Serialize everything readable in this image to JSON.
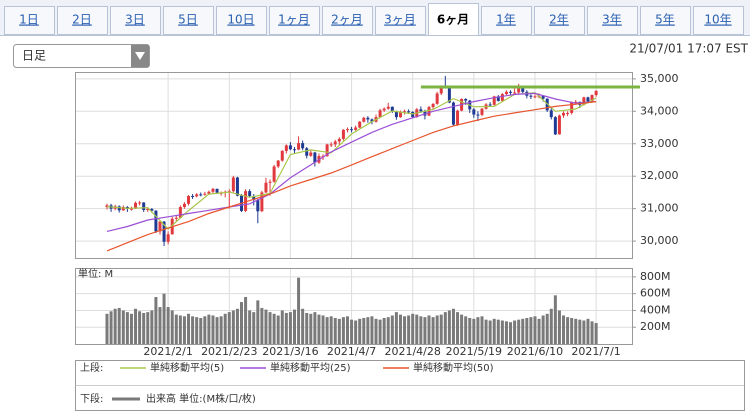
{
  "tabs": [
    "1日",
    "2日",
    "3日",
    "5日",
    "10日",
    "1ヶ月",
    "2ヶ月",
    "3ヶ月",
    "6ヶ月",
    "1年",
    "2年",
    "3年",
    "5年",
    "10年"
  ],
  "selected_tab": 8,
  "dropdown": "日足",
  "timestamp": "21/07/01 17:07 EST",
  "chart_data": [
    {
      "type": "candlestick",
      "legend_label": "上段:",
      "up_color": "#e0393e",
      "down_color": "#1f3a93",
      "ylim": [
        29480,
        35180
      ],
      "yticks": [
        {
          "value": 30000,
          "label": "30,000"
        },
        {
          "value": 31000,
          "label": "31,000"
        },
        {
          "value": 32000,
          "label": "32,000"
        },
        {
          "value": 33000,
          "label": "33,000"
        },
        {
          "value": 34000,
          "label": "34,000"
        },
        {
          "value": 35000,
          "label": "35,000"
        }
      ],
      "grid": true,
      "open": [
        31050,
        31100,
        31000,
        31070,
        30950,
        31050,
        30990,
        31000,
        31180,
        31190,
        30960,
        30990,
        30940,
        30300,
        30600,
        29980,
        30210,
        30690,
        30720,
        31050,
        31150,
        31390,
        31380,
        31440,
        31430,
        31460,
        31520,
        31610,
        31490,
        31490,
        31520,
        31540,
        31960,
        31400,
        30930,
        31540,
        31390,
        31270,
        30920,
        31500,
        31800,
        31830,
        32300,
        32480,
        32780,
        32950,
        32830,
        32820,
        33020,
        32860,
        32630,
        32730,
        32420,
        32620,
        32620,
        32980,
        32980,
        33070,
        33150,
        33430,
        33450,
        33430,
        33500,
        33680,
        33800,
        33750,
        33680,
        33820,
        34030,
        34080,
        34140,
        34000,
        33820,
        33980,
        34000,
        33980,
        33820,
        34060,
        34000,
        33870,
        34130,
        34230,
        34550,
        34780,
        34740,
        34270,
        33590,
        34020,
        34380,
        34330,
        34060,
        33900,
        33890,
        34080,
        34210,
        34200,
        34460,
        34320,
        34530,
        34600,
        34580,
        34580,
        34760,
        34600,
        34480,
        34450,
        34460,
        34470,
        34390,
        34030,
        33820,
        33290,
        33870,
        33950,
        33950,
        34280,
        34290,
        34200,
        34430,
        34300,
        34500
      ],
      "high": [
        31150,
        31150,
        31120,
        31100,
        31100,
        31080,
        31060,
        31220,
        31240,
        31200,
        31050,
        31020,
        30950,
        30650,
        30620,
        30300,
        30750,
        30800,
        31100,
        31200,
        31420,
        31450,
        31480,
        31500,
        31520,
        31560,
        31640,
        31620,
        31530,
        31560,
        31600,
        32010,
        31980,
        31450,
        31600,
        31600,
        31450,
        31300,
        31550,
        31950,
        31900,
        32350,
        32500,
        32800,
        32980,
        33050,
        32900,
        33230,
        33100,
        32900,
        32800,
        32750,
        32700,
        32680,
        33000,
        33050,
        33120,
        33200,
        33450,
        33500,
        33520,
        33560,
        33700,
        33830,
        33850,
        33780,
        33900,
        34080,
        34120,
        34260,
        34150,
        34020,
        34020,
        34050,
        34060,
        34000,
        34100,
        34150,
        34050,
        34170,
        34250,
        34600,
        34800,
        35090,
        34760,
        34300,
        34050,
        34400,
        34400,
        34350,
        34100,
        34000,
        34100,
        34250,
        34280,
        34480,
        34500,
        34560,
        34650,
        34650,
        34700,
        34850,
        34780,
        34650,
        34520,
        34520,
        34550,
        34500,
        34400,
        34100,
        33850,
        33900,
        34000,
        34000,
        34300,
        34350,
        34300,
        34450,
        34450,
        34520,
        34650
      ],
      "low": [
        30980,
        30900,
        30950,
        30880,
        30930,
        30900,
        30940,
        30990,
        31100,
        30900,
        30900,
        30880,
        30250,
        30200,
        29850,
        29900,
        30200,
        30600,
        30700,
        31000,
        31100,
        31300,
        31350,
        31380,
        31400,
        31420,
        31480,
        31450,
        31400,
        31350,
        31000,
        31500,
        31380,
        30900,
        30900,
        31350,
        31100,
        30550,
        30900,
        31480,
        31400,
        31800,
        32250,
        32450,
        32700,
        32800,
        32700,
        32800,
        32800,
        32550,
        32600,
        32300,
        32380,
        32500,
        32600,
        32900,
        32900,
        32950,
        33100,
        33350,
        33350,
        33400,
        33480,
        33650,
        33650,
        33600,
        33650,
        33800,
        33980,
        34050,
        33950,
        33740,
        33800,
        33900,
        33920,
        33780,
        33800,
        33950,
        33750,
        33850,
        34050,
        34200,
        34500,
        34700,
        34250,
        33560,
        33550,
        34000,
        34200,
        33950,
        33800,
        33700,
        33850,
        34050,
        34150,
        34180,
        34300,
        34300,
        34500,
        34520,
        34500,
        34550,
        34550,
        34400,
        34380,
        34400,
        34400,
        34300,
        33980,
        33750,
        33270,
        33280,
        33800,
        33850,
        33900,
        34200,
        34100,
        34180,
        34250,
        34280,
        34450
      ],
      "close": [
        31100,
        31000,
        31070,
        30950,
        31050,
        30990,
        31000,
        31180,
        31190,
        30960,
        30990,
        30940,
        30300,
        30600,
        29980,
        30210,
        30690,
        30720,
        31050,
        31150,
        31390,
        31380,
        31440,
        31430,
        31460,
        31520,
        31610,
        31490,
        31490,
        31520,
        31540,
        31960,
        31400,
        30930,
        31540,
        31390,
        31270,
        30920,
        31500,
        31800,
        31830,
        32300,
        32480,
        32780,
        32950,
        32830,
        32820,
        33020,
        32860,
        32630,
        32730,
        32420,
        32620,
        32620,
        32980,
        32980,
        33070,
        33150,
        33430,
        33450,
        33430,
        33500,
        33680,
        33800,
        33750,
        33680,
        33820,
        34030,
        34080,
        34140,
        34000,
        33820,
        33980,
        34000,
        33980,
        33820,
        34060,
        34000,
        33870,
        34130,
        34230,
        34550,
        34780,
        34740,
        34270,
        33590,
        34020,
        34380,
        34330,
        34060,
        33900,
        33890,
        34080,
        34210,
        34200,
        34460,
        34320,
        34530,
        34600,
        34580,
        34580,
        34760,
        34600,
        34480,
        34450,
        34460,
        34470,
        34390,
        34030,
        33820,
        33290,
        33870,
        33950,
        33950,
        34280,
        34290,
        34200,
        34430,
        34300,
        34500,
        34630
      ],
      "series": [
        {
          "name": "単純移動平均(5)",
          "color": "#a8c84a",
          "x": [
            0,
            5,
            10,
            15,
            20,
            25,
            30,
            35,
            40,
            45,
            50,
            55,
            60,
            65,
            70,
            75,
            80,
            85,
            90,
            95,
            100,
            105,
            110,
            115,
            120
          ],
          "values": [
            31060,
            31010,
            31030,
            30370,
            30940,
            31450,
            31510,
            31350,
            31470,
            32670,
            32810,
            32720,
            33300,
            33680,
            34010,
            33920,
            34060,
            34390,
            34140,
            34150,
            34520,
            34570,
            34000,
            34070,
            34410
          ]
        },
        {
          "name": "単純移動平均(25)",
          "color": "#9b4fd6",
          "x": [
            0,
            5,
            10,
            15,
            20,
            25,
            30,
            35,
            40,
            45,
            50,
            55,
            60,
            65,
            70,
            75,
            80,
            85,
            90,
            95,
            100,
            105,
            110,
            115,
            120
          ],
          "values": [
            30300,
            30450,
            30650,
            30750,
            30850,
            30950,
            31050,
            31150,
            31450,
            31950,
            32350,
            32750,
            33050,
            33350,
            33600,
            33800,
            34000,
            34150,
            34300,
            34420,
            34520,
            34550,
            34380,
            34250,
            34300
          ]
        },
        {
          "name": "単純移動平均(50)",
          "color": "#e8552e",
          "x": [
            0,
            5,
            10,
            15,
            20,
            25,
            30,
            35,
            40,
            45,
            50,
            55,
            60,
            65,
            70,
            75,
            80,
            85,
            90,
            95,
            100,
            105,
            110,
            115,
            120
          ],
          "values": [
            29700,
            29950,
            30200,
            30400,
            30600,
            30850,
            31050,
            31250,
            31450,
            31700,
            31900,
            32100,
            32350,
            32600,
            32850,
            33100,
            33350,
            33550,
            33700,
            33850,
            33950,
            34050,
            34150,
            34220,
            34300
          ]
        }
      ],
      "reference_line": {
        "value": 34750,
        "from": 77,
        "color": "#7cb342"
      }
    },
    {
      "type": "bar",
      "legend_label": "下段:",
      "unit_label": "単位: M",
      "categories": [
        null,
        null,
        null,
        null,
        null,
        null,
        null,
        null,
        null,
        null,
        null,
        null,
        null,
        null,
        null,
        "2021/2/1",
        null,
        null,
        null,
        null,
        null,
        null,
        null,
        null,
        null,
        null,
        null,
        null,
        null,
        null,
        "2021/2/23",
        null,
        null,
        null,
        null,
        null,
        null,
        null,
        null,
        null,
        null,
        null,
        null,
        null,
        null,
        "2021/3/16",
        null,
        null,
        null,
        null,
        null,
        null,
        null,
        null,
        null,
        null,
        null,
        null,
        null,
        null,
        "2021/4/7",
        null,
        null,
        null,
        null,
        null,
        null,
        null,
        null,
        null,
        null,
        null,
        null,
        null,
        null,
        "2021/4/28",
        null,
        null,
        null,
        null,
        null,
        null,
        null,
        null,
        null,
        null,
        null,
        null,
        null,
        null,
        "2021/5/19",
        null,
        null,
        null,
        null,
        null,
        null,
        null,
        null,
        null,
        null,
        null,
        null,
        null,
        null,
        "2021/6/10",
        null,
        null,
        null,
        null,
        null,
        null,
        null,
        null,
        null,
        null,
        null,
        null,
        null,
        null,
        "2021/7/1"
      ],
      "ylim": [
        0,
        894
      ],
      "yticks": [
        {
          "value": 200,
          "label": "200M"
        },
        {
          "value": 400,
          "label": "400M"
        },
        {
          "value": 600,
          "label": "600M"
        },
        {
          "value": 800,
          "label": "800M"
        }
      ],
      "grid": true,
      "series": [
        {
          "name": "出来高 単位:(M株/口/枚)",
          "color": "#7a7a7a",
          "values": [
            360,
            390,
            420,
            430,
            400,
            380,
            360,
            420,
            390,
            370,
            380,
            400,
            560,
            440,
            600,
            440,
            400,
            350,
            340,
            330,
            360,
            330,
            320,
            310,
            330,
            350,
            340,
            320,
            330,
            360,
            380,
            400,
            420,
            500,
            560,
            400,
            380,
            520,
            430,
            410,
            380,
            360,
            340,
            400,
            370,
            380,
            410,
            790,
            420,
            370,
            360,
            380,
            350,
            340,
            320,
            330,
            310,
            300,
            320,
            330,
            290,
            280,
            300,
            310,
            320,
            330,
            300,
            290,
            310,
            320,
            340,
            380,
            350,
            330,
            340,
            360,
            350,
            330,
            320,
            340,
            320,
            340,
            350,
            380,
            400,
            420,
            380,
            350,
            330,
            310,
            300,
            320,
            330,
            290,
            280,
            300,
            290,
            280,
            270,
            260,
            280,
            290,
            300,
            310,
            320,
            330,
            300,
            340,
            360,
            420,
            580,
            400,
            340,
            320,
            310,
            300,
            290,
            280,
            300,
            270,
            250
          ]
        }
      ]
    }
  ]
}
